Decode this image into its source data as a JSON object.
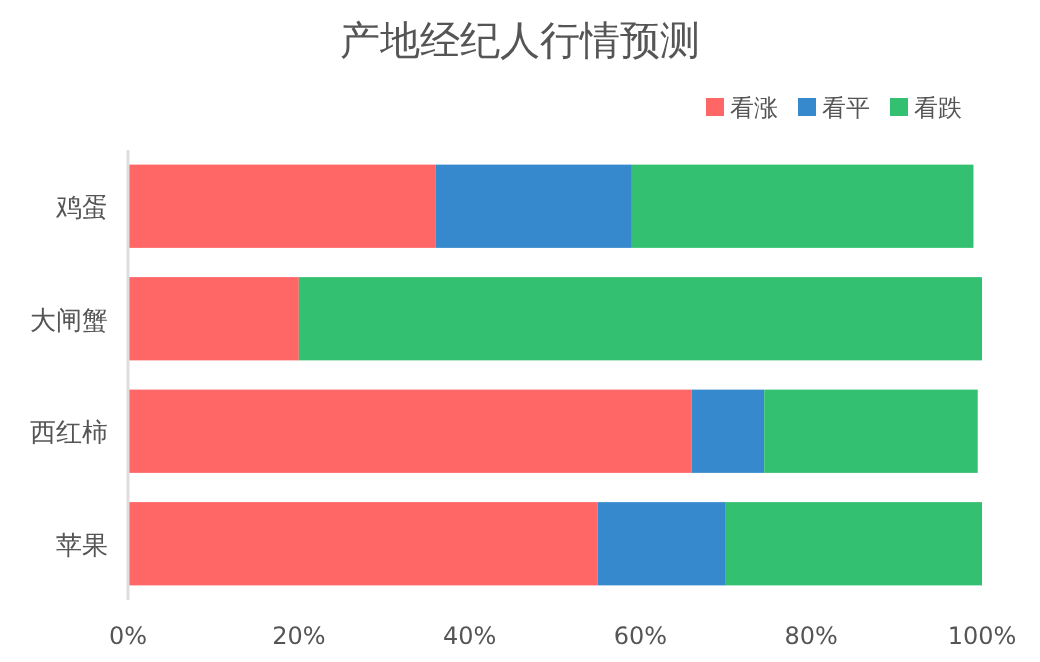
{
  "chart_data": {
    "type": "bar",
    "orientation": "horizontal",
    "stacked": true,
    "title": "产地经纪人行情预测",
    "categories": [
      "鸡蛋",
      "大闸蟹",
      "西红柿",
      "苹果"
    ],
    "series": [
      {
        "name": "看涨",
        "color": "#ff6666",
        "values": [
          36,
          20,
          66,
          55
        ]
      },
      {
        "name": "看平",
        "color": "#3589cc",
        "values": [
          23,
          null,
          8.5,
          15
        ]
      },
      {
        "name": "看跌",
        "color": "#33c070",
        "values": [
          40,
          80,
          25,
          30
        ]
      }
    ],
    "xlim": [
      0,
      100
    ],
    "xticks": [
      {
        "value": 0,
        "label": "0%"
      },
      {
        "value": 20,
        "label": "20%"
      },
      {
        "value": 40,
        "label": "40%"
      },
      {
        "value": 60,
        "label": "60%"
      },
      {
        "value": 80,
        "label": "80%"
      },
      {
        "value": 100,
        "label": "100%"
      }
    ],
    "grid": false,
    "legend": "top right"
  }
}
